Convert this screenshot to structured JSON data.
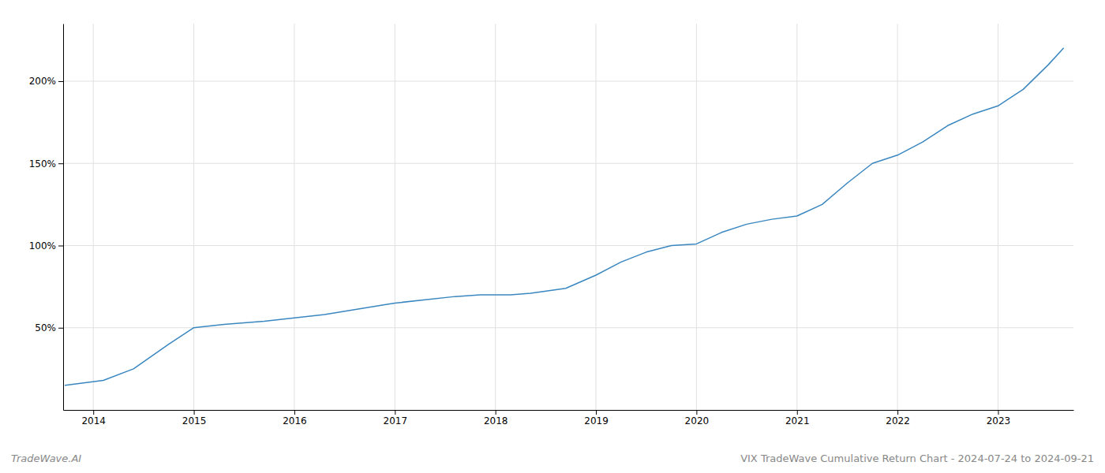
{
  "chart_data": {
    "type": "line",
    "title": "VIX TradeWave Cumulative Return Chart - 2024-07-24 to 2024-09-21",
    "annotations": [
      "TradeWave.AI"
    ],
    "x": [
      2013.72,
      2014.1,
      2014.4,
      2014.75,
      2015.0,
      2015.3,
      2015.7,
      2016.0,
      2016.3,
      2016.6,
      2016.9,
      2017.0,
      2017.3,
      2017.6,
      2017.85,
      2018.0,
      2018.15,
      2018.35,
      2018.7,
      2019.0,
      2019.25,
      2019.5,
      2019.75,
      2020.0,
      2020.25,
      2020.5,
      2020.75,
      2021.0,
      2021.25,
      2021.5,
      2021.75,
      2022.0,
      2022.25,
      2022.5,
      2022.75,
      2023.0,
      2023.25,
      2023.5,
      2023.65
    ],
    "values": [
      15,
      18,
      25,
      40,
      50,
      52,
      54,
      56,
      58,
      61,
      64,
      65,
      67,
      69,
      70,
      70,
      70,
      71,
      74,
      82,
      90,
      96,
      100,
      101,
      108,
      113,
      116,
      118,
      125,
      138,
      150,
      155,
      163,
      173,
      180,
      185,
      195,
      210,
      220
    ],
    "color": "#3a87c0",
    "xlim": [
      2013.7,
      2023.75
    ],
    "xticks": [
      2014,
      2015,
      2016,
      2017,
      2018,
      2019,
      2020,
      2021,
      2022,
      2023
    ],
    "ylim": [
      0,
      235
    ],
    "yticks": [
      {
        "value": 50,
        "label": "50%"
      },
      {
        "value": 100,
        "label": "100%"
      },
      {
        "value": 150,
        "label": "150%"
      },
      {
        "value": 200,
        "label": "200%"
      }
    ],
    "grid": true
  }
}
